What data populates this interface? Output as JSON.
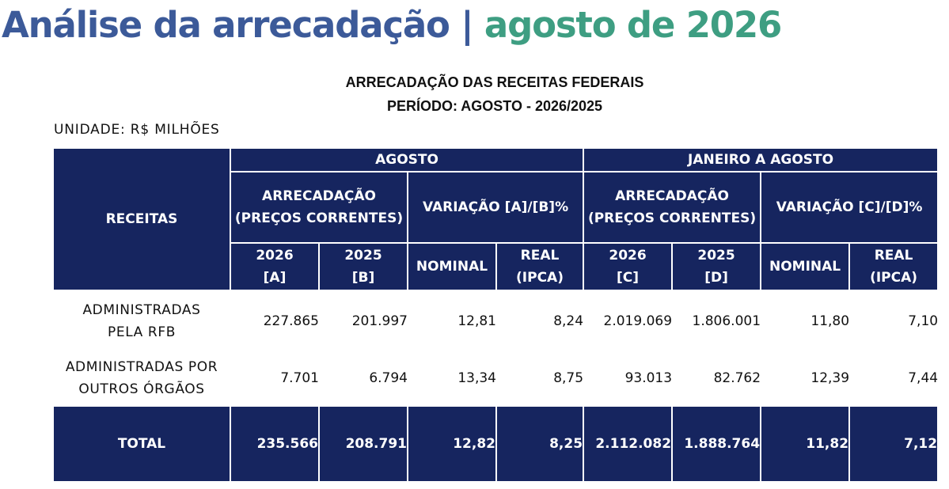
{
  "title": {
    "part1": "Análise da arrecadação | ",
    "part2": "agosto de 2026",
    "color1": "#3c5a99",
    "color2": "#3e9e82"
  },
  "subtitle": {
    "line1": "ARRECADAÇÃO DAS RECEITAS FEDERAIS",
    "line2": "PERÍODO: AGOSTO - 2026/2025"
  },
  "unit": "UNIDADE: R$ MILHÕES",
  "table": {
    "header_color": "#16255f",
    "receitas_label": "RECEITAS",
    "groups": {
      "agosto": "AGOSTO",
      "jan_ago": "JANEIRO A AGOSTO"
    },
    "subgroups": {
      "arrec_line1": "ARRECADAÇÃO",
      "arrec_line2": "(PREÇOS CORRENTES)",
      "var_ab": "VARIAÇÃO [A]/[B]%",
      "var_cd": "VARIAÇÃO [C]/[D]%"
    },
    "columns": [
      {
        "line1": "2026",
        "line2": "[A]"
      },
      {
        "line1": "2025",
        "line2": "[B]"
      },
      {
        "line1": "NOMINAL",
        "line2": ""
      },
      {
        "line1": "REAL",
        "line2": "(IPCA)"
      },
      {
        "line1": "2026",
        "line2": "[C]"
      },
      {
        "line1": "2025",
        "line2": "[D]"
      },
      {
        "line1": "NOMINAL",
        "line2": ""
      },
      {
        "line1": "REAL",
        "line2": "(IPCA)"
      }
    ],
    "rows": [
      {
        "label_line1": "ADMINISTRADAS",
        "label_line2": "PELA RFB",
        "values": [
          "227.865",
          "201.997",
          "12,81",
          "8,24",
          "2.019.069",
          "1.806.001",
          "11,80",
          "7,10"
        ]
      },
      {
        "label_line1": "ADMINISTRADAS POR",
        "label_line2": "OUTROS ÓRGÃOS",
        "values": [
          "7.701",
          "6.794",
          "13,34",
          "8,75",
          "93.013",
          "82.762",
          "12,39",
          "7,44"
        ]
      }
    ],
    "total": {
      "label": "TOTAL",
      "values": [
        "235.566",
        "208.791",
        "12,82",
        "8,25",
        "2.112.082",
        "1.888.764",
        "11,82",
        "7,12"
      ]
    }
  }
}
